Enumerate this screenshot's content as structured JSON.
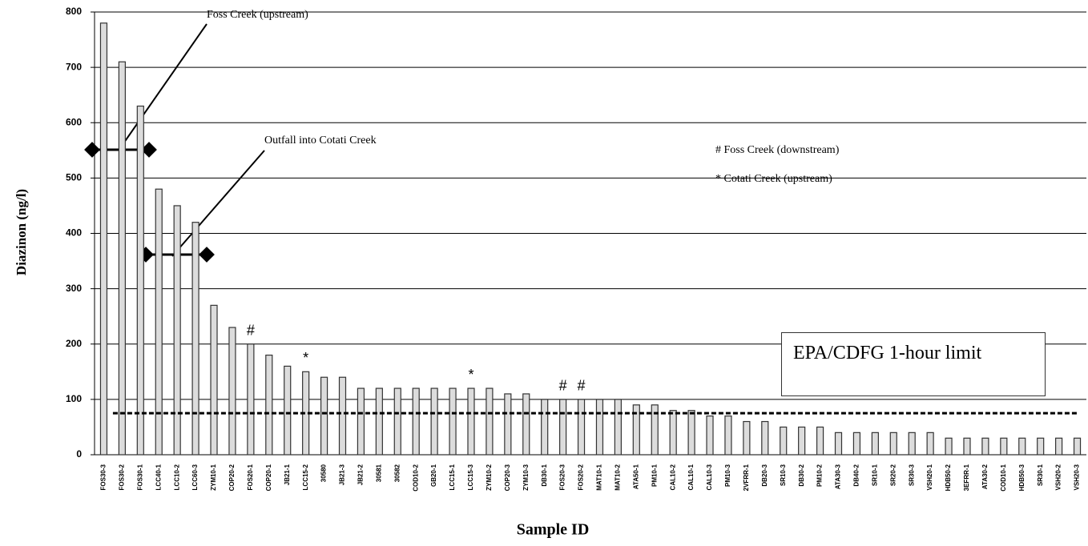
{
  "chart_data": {
    "type": "bar",
    "y_label": "Diazinon (ng/l)",
    "x_label": "Sample ID",
    "categories": [
      "FOS30-3",
      "FOS30-2",
      "FOS30-1",
      "LCC40-1",
      "LCC10-2",
      "LCC60-3",
      "ZYM10-1",
      "COP20-2",
      "FOS20-1",
      "COP20-1",
      "JB21-1",
      "LCC15-2",
      "30580",
      "JB21-3",
      "JB21-2",
      "30581",
      "30582",
      "COD10-2",
      "GB20-1",
      "LCC15-1",
      "LCC15-3",
      "ZYM10-2",
      "COP20-3",
      "ZYM10-3",
      "DB30-1",
      "FOS20-3",
      "FOS20-2",
      "MAT10-1",
      "MAT10-2",
      "ATA50-1",
      "PM10-1",
      "CAL10-2",
      "CAL10-1",
      "CAL10-3",
      "PM10-3",
      "2VFRR-1",
      "DB20-3",
      "SR10-3",
      "DB30-2",
      "PM10-2",
      "ATA30-3",
      "DB40-2",
      "SR10-1",
      "SR20-2",
      "SR30-3",
      "VSH20-1",
      "HDB50-2",
      "3EFRR-1",
      "ATA30-2",
      "COD10-1",
      "HDB50-3",
      "SR30-1",
      "VSH20-2",
      "VSH20-3"
    ],
    "values": [
      780,
      710,
      630,
      480,
      450,
      420,
      270,
      230,
      200,
      180,
      160,
      150,
      140,
      140,
      120,
      120,
      120,
      120,
      120,
      120,
      120,
      120,
      110,
      110,
      100,
      100,
      100,
      100,
      100,
      90,
      90,
      80,
      80,
      70,
      70,
      60,
      60,
      50,
      50,
      50,
      40,
      40,
      40,
      40,
      40,
      40,
      30,
      30,
      30,
      30,
      30,
      30,
      30,
      30
    ],
    "color": "#dcdcdc",
    "ylim": [
      0,
      800
    ],
    "yticks": [
      0,
      100,
      200,
      300,
      400,
      500,
      600,
      700,
      800
    ],
    "grid": true,
    "limit_value": 75,
    "limit_label": "EPA/CDFG 1-hour limit",
    "annotations": [
      "Foss Creek (upstream)",
      "Outfall into Cotati Creek"
    ],
    "legend": [
      "# Foss Creek (downstream)",
      "* Cotati Creek (upstream)"
    ],
    "markers": [
      {
        "category": "FOS20-1",
        "label": "#"
      },
      {
        "category": "LCC15-2",
        "label": "*"
      },
      {
        "category": "LCC15-3",
        "label": "*"
      },
      {
        "category": "FOS20-3",
        "label": "#"
      },
      {
        "category": "FOS20-2",
        "label": "#"
      }
    ]
  }
}
